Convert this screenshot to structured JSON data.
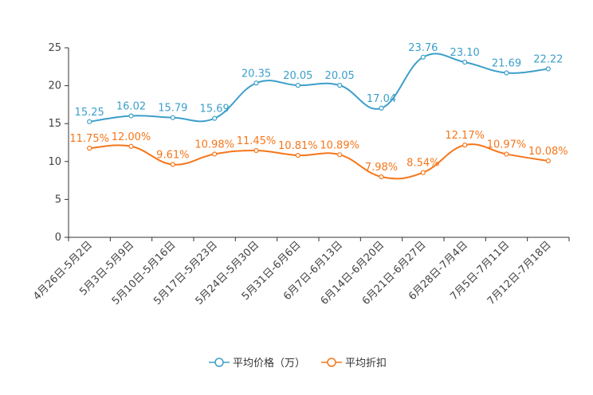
{
  "chart_data": {
    "type": "line",
    "title": "",
    "xlabel": "",
    "ylabel": "",
    "ylim": [
      0,
      25
    ],
    "yticks": [
      0,
      5,
      10,
      15,
      20,
      25
    ],
    "grid": false,
    "legend_position": "bottom-center",
    "categories": [
      "4月26日-5月2日",
      "5月3日-5月9日",
      "5月10日-5月16日",
      "5月17日-5月23日",
      "5月24日-5月30日",
      "5月31日-6月6日",
      "6月7日-6月13日",
      "6月14日-6月20日",
      "6月21日-6月27日",
      "6月28日-7月4日",
      "7月5日-7月11日",
      "7月12日-7月18日"
    ],
    "series": [
      {
        "name": "平均价格（万）",
        "color": "#3c9fca",
        "values": [
          15.25,
          16.02,
          15.79,
          15.69,
          20.35,
          20.05,
          20.05,
          17.04,
          23.76,
          23.1,
          21.69,
          22.22
        ],
        "labels": [
          "15.25",
          "16.02",
          "15.79",
          "15.69",
          "20.35",
          "20.05",
          "20.05",
          "17.04",
          "23.76",
          "23.10",
          "21.69",
          "22.22"
        ]
      },
      {
        "name": "平均折扣",
        "color": "#f5761a",
        "values": [
          11.75,
          12.0,
          9.61,
          10.98,
          11.45,
          10.81,
          10.89,
          7.98,
          8.54,
          12.17,
          10.97,
          10.08
        ],
        "labels": [
          "11.75%",
          "12.00%",
          "9.61%",
          "10.98%",
          "11.45%",
          "10.81%",
          "10.89%",
          "7.98%",
          "8.54%",
          "12.17%",
          "10.97%",
          "10.08%"
        ]
      }
    ]
  }
}
